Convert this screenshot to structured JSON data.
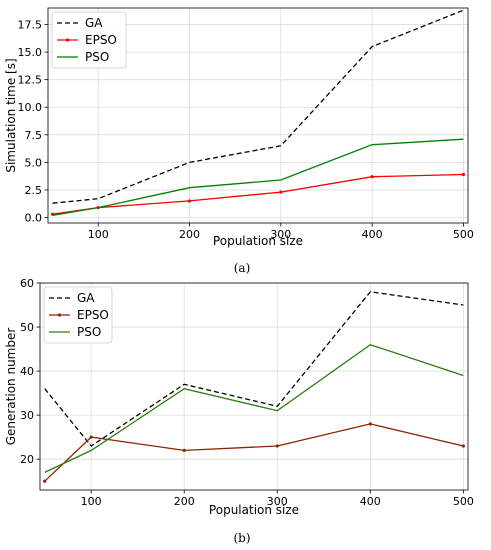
{
  "chart_data": [
    {
      "type": "line",
      "panel_label": "(a)",
      "title": "",
      "xlabel": "Population size",
      "ylabel": "Simulation time [s]",
      "xlim": [
        45,
        505
      ],
      "ylim": [
        -0.5,
        19
      ],
      "xticks": [
        100,
        200,
        300,
        400,
        500
      ],
      "yticks": [
        0.0,
        2.5,
        5.0,
        7.5,
        10.0,
        12.5,
        15.0,
        17.5
      ],
      "ytick_labels": [
        "0.0",
        "2.5",
        "5.0",
        "7.5",
        "10.0",
        "12.5",
        "15.0",
        "17.5"
      ],
      "grid": true,
      "legend": "top-left",
      "series": [
        {
          "name": "GA",
          "color": "#000000",
          "style": "dashed",
          "marker": false,
          "x": [
            50,
            100,
            200,
            300,
            400,
            500
          ],
          "y": [
            1.3,
            1.7,
            5.0,
            6.5,
            15.5,
            18.8
          ]
        },
        {
          "name": "EPSO",
          "color": "#ff0000",
          "style": "solid",
          "marker": true,
          "x": [
            50,
            100,
            200,
            300,
            400,
            500
          ],
          "y": [
            0.3,
            0.9,
            1.5,
            2.3,
            3.7,
            3.9
          ]
        },
        {
          "name": "PSO",
          "color": "#008000",
          "style": "solid",
          "marker": false,
          "x": [
            50,
            100,
            200,
            300,
            400,
            500
          ],
          "y": [
            0.2,
            0.9,
            2.7,
            3.4,
            6.6,
            7.1
          ]
        }
      ]
    },
    {
      "type": "line",
      "panel_label": "(b)",
      "title": "",
      "xlabel": "Population size",
      "ylabel": "Generation number",
      "xlim": [
        45,
        505
      ],
      "ylim": [
        13,
        60
      ],
      "xticks": [
        100,
        200,
        300,
        400,
        500
      ],
      "yticks": [
        20,
        30,
        40,
        50,
        60
      ],
      "ytick_labels": [
        "20",
        "30",
        "40",
        "50",
        "60"
      ],
      "grid": true,
      "legend": "top-left",
      "series": [
        {
          "name": "GA",
          "color": "#000000",
          "style": "dashed",
          "marker": false,
          "x": [
            50,
            100,
            200,
            300,
            400,
            500
          ],
          "y": [
            36,
            23,
            37,
            32,
            58,
            55
          ]
        },
        {
          "name": "EPSO",
          "color": "#8b2500",
          "style": "solid",
          "marker": true,
          "x": [
            50,
            100,
            200,
            300,
            400,
            500
          ],
          "y": [
            15,
            25,
            22,
            23,
            28,
            23
          ]
        },
        {
          "name": "PSO",
          "color": "#2e7d16",
          "style": "solid",
          "marker": false,
          "x": [
            50,
            100,
            200,
            300,
            400,
            500
          ],
          "y": [
            17,
            22,
            36,
            31,
            46,
            39
          ]
        }
      ]
    }
  ]
}
